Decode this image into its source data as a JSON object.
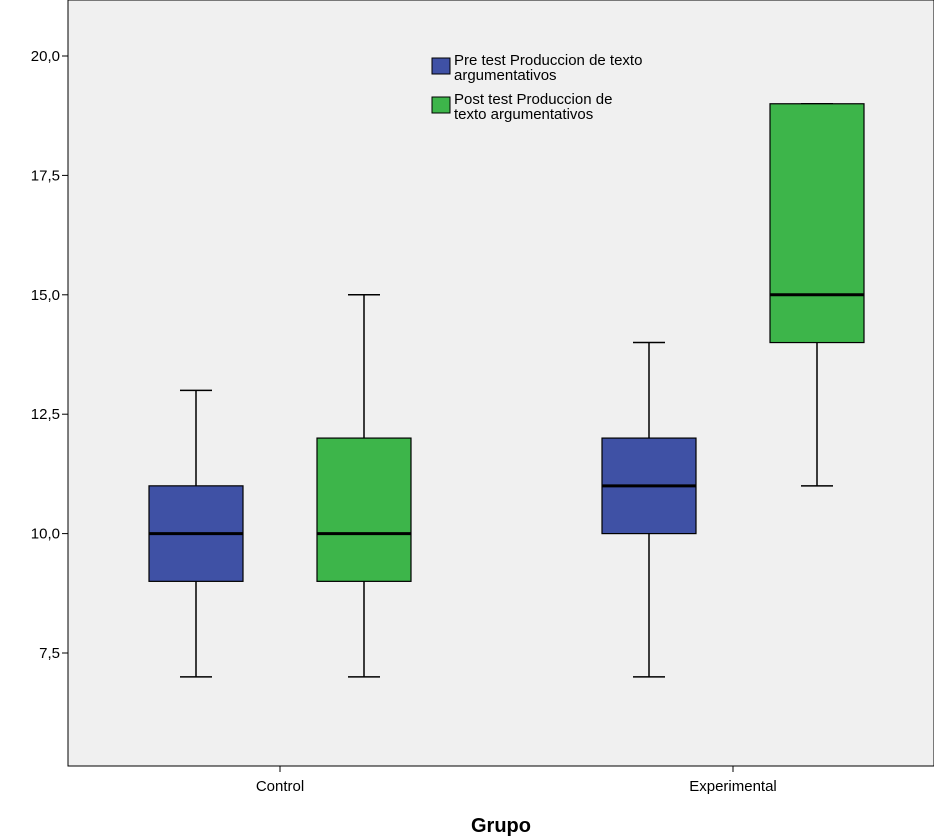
{
  "chart_data": {
    "type": "boxplot",
    "xlabel": "Grupo",
    "ylabel": "",
    "ylim": [
      5.7,
      21.5
    ],
    "yticks": [
      7.5,
      10.0,
      12.5,
      15.0,
      17.5,
      20.0
    ],
    "ytick_labels": [
      "7,5",
      "10,0",
      "12,5",
      "15,0",
      "17,5",
      "20,0"
    ],
    "categories": [
      "Control",
      "Experimental"
    ],
    "grid": false,
    "legend_position": "top-center",
    "plot_background": "#f0f0f0",
    "series": [
      {
        "name": "Pre test Produccion de texto argumentativos",
        "legend_lines": [
          "Pre test Produccion de texto",
          "argumentativos"
        ],
        "color": "#3f51a5",
        "boxes": [
          {
            "min": 7,
            "q1": 9,
            "median": 10,
            "q3": 11,
            "max": 13
          },
          {
            "min": 7,
            "q1": 10,
            "median": 11,
            "q3": 12,
            "max": 14
          }
        ]
      },
      {
        "name": "Post test Produccion de texto argumentativos",
        "legend_lines": [
          "Post test Produccion de",
          "texto argumentativos"
        ],
        "color": "#3db54a",
        "boxes": [
          {
            "min": 7,
            "q1": 9,
            "median": 10,
            "q3": 12,
            "max": 15
          },
          {
            "min": 11,
            "q1": 14,
            "median": 15,
            "q3": 19,
            "max": 19
          }
        ]
      }
    ]
  }
}
